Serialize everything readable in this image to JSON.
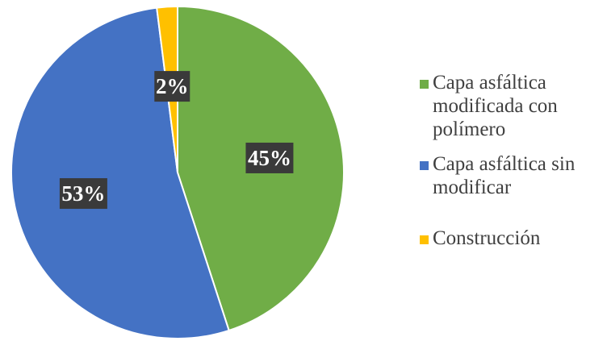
{
  "chart_data": {
    "type": "pie",
    "title": "",
    "slices": [
      {
        "label": "Capa asfáltica modificada con polímero",
        "value": 45,
        "display": "45%",
        "color": "#70ad47"
      },
      {
        "label": "Capa asfáltica sin modificar",
        "value": 53,
        "display": "53%",
        "color": "#4472c4"
      },
      {
        "label": "Construcción",
        "value": 2,
        "display": "2%",
        "color": "#ffc000"
      }
    ],
    "legend": {
      "placement": "right",
      "items": [
        {
          "label": "Capa asfáltica modificada con polímero",
          "color": "#70ad47"
        },
        {
          "label": "Capa asfáltica sin modificar",
          "color": "#4472c4"
        },
        {
          "label": "Construcción",
          "color": "#ffc000"
        }
      ]
    },
    "data_label_background": "#3a3a3a",
    "data_label_color": "#ffffff"
  }
}
